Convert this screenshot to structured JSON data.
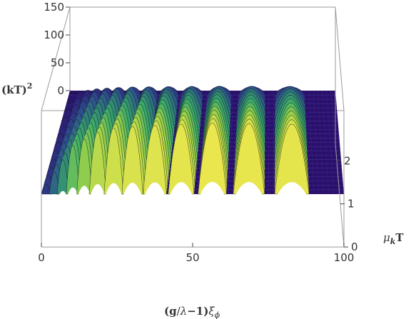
{
  "chart_data": {
    "type": "surface3d",
    "colormap": [
      "#2a0f6b",
      "#2f4a8f",
      "#2f7f7a",
      "#3fae6a",
      "#9fd34a",
      "#f2e94e"
    ],
    "x_axis": {
      "label_parts": [
        "(",
        "g",
        "/",
        "λ",
        "−",
        "1",
        ")",
        "ξ",
        "ϕ"
      ],
      "label_text": "(g/λ−1)ξϕ",
      "range": [
        0,
        100
      ],
      "ticks": [
        "0",
        "50",
        "100"
      ]
    },
    "y_axis": {
      "label_text": "μkT",
      "label_parts": [
        "μ",
        "k",
        "T"
      ],
      "range": [
        0,
        2.4
      ],
      "ticks": [
        "0",
        "1",
        "2"
      ]
    },
    "z_axis": {
      "label_text": "(kT)²",
      "label_parts": [
        "(kT)",
        "2"
      ],
      "range": [
        0,
        150
      ],
      "ticks": [
        "0",
        "50",
        "100",
        "150"
      ]
    },
    "band_centers": [
      1.5,
      4.3,
      7.1,
      10.4,
      14.2,
      18.6,
      23.9,
      30.1,
      37.5,
      46.2,
      56.5,
      68.6,
      82.8
    ],
    "band_widths": [
      1.5,
      1.7,
      1.9,
      2.2,
      2.5,
      2.8,
      3.2,
      3.5,
      3.9,
      4.3,
      4.7,
      5.2,
      5.7
    ],
    "band_peak_heights": [
      18,
      40,
      62,
      88,
      100,
      112,
      119,
      122,
      124,
      126,
      128,
      127,
      126
    ]
  }
}
